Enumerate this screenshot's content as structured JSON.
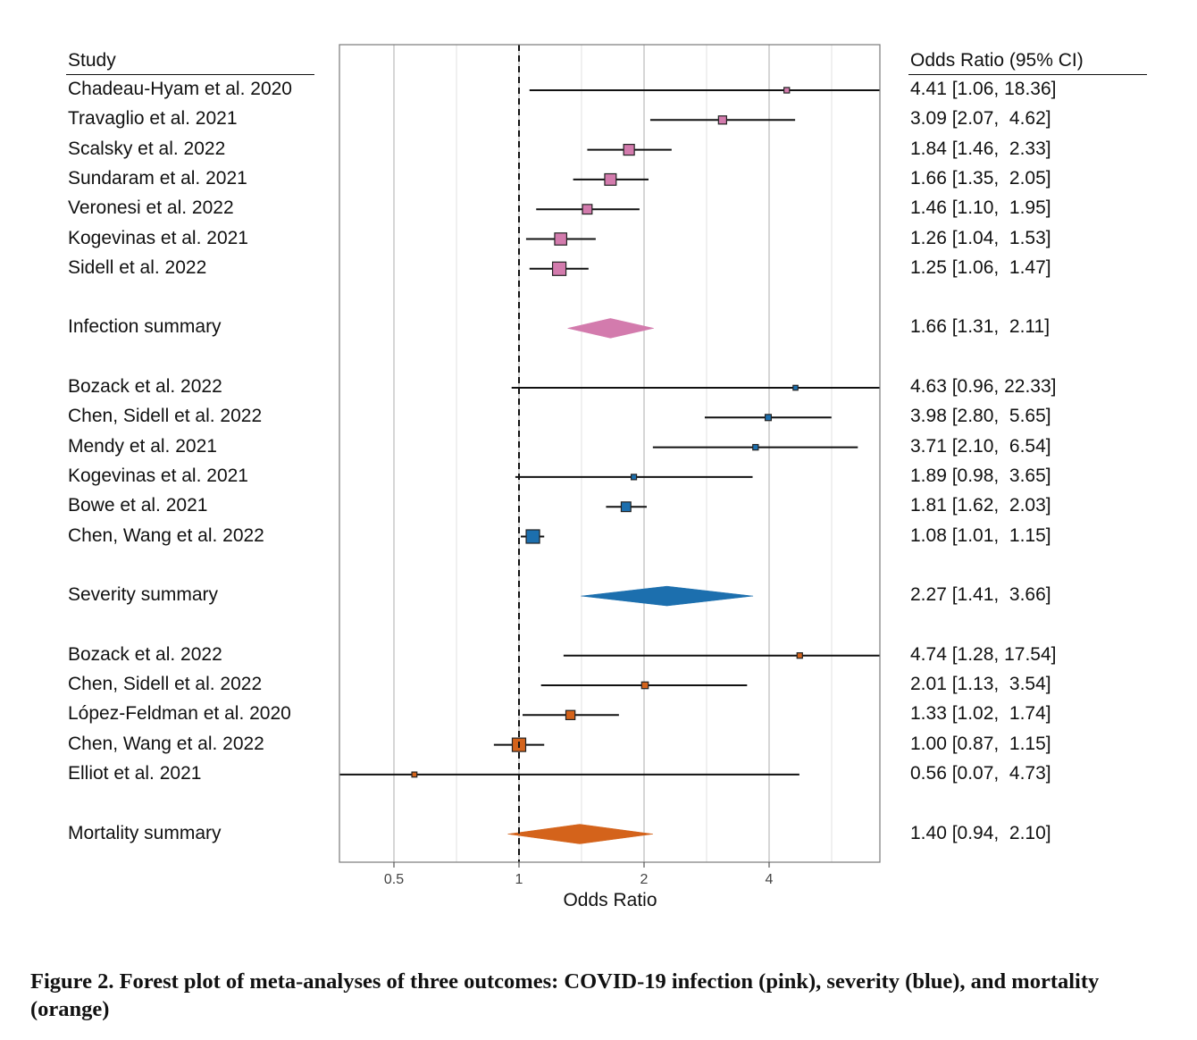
{
  "chart_data": {
    "type": "forest",
    "xscale": "log",
    "xlabel": "Odds Ratio",
    "xticks": [
      0.5,
      1,
      2,
      4
    ],
    "xlim": [
      0.36,
      6.1
    ],
    "reference_line": 1,
    "colors": {
      "infection": "#d37bad",
      "severity": "#1c6fae",
      "mortality": "#d4631b"
    },
    "headers": {
      "study": "Study",
      "odds_ratio": "Odds Ratio (95% CI)"
    },
    "groups": [
      {
        "outcome": "infection",
        "studies": [
          {
            "study": "Chadeau-Hyam et al. 2020",
            "or": 4.41,
            "lo": 1.06,
            "hi": 18.36,
            "label": "4.41 [1.06, 18.36]"
          },
          {
            "study": "Travaglio et al. 2021",
            "or": 3.09,
            "lo": 2.07,
            "hi": 4.62,
            "label": "3.09 [2.07,  4.62]"
          },
          {
            "study": "Scalsky et al. 2022",
            "or": 1.84,
            "lo": 1.46,
            "hi": 2.33,
            "label": "1.84 [1.46,  2.33]"
          },
          {
            "study": "Sundaram et al. 2021",
            "or": 1.66,
            "lo": 1.35,
            "hi": 2.05,
            "label": "1.66 [1.35,  2.05]"
          },
          {
            "study": "Veronesi et al. 2022",
            "or": 1.46,
            "lo": 1.1,
            "hi": 1.95,
            "label": "1.46 [1.10,  1.95]"
          },
          {
            "study": "Kogevinas et al. 2021",
            "or": 1.26,
            "lo": 1.04,
            "hi": 1.53,
            "label": "1.26 [1.04,  1.53]"
          },
          {
            "study": "Sidell et al. 2022",
            "or": 1.25,
            "lo": 1.06,
            "hi": 1.47,
            "label": "1.25 [1.06,  1.47]"
          }
        ],
        "summary": {
          "label_text": "Infection summary",
          "or": 1.66,
          "lo": 1.31,
          "hi": 2.11,
          "label": "1.66 [1.31,  2.11]"
        }
      },
      {
        "outcome": "severity",
        "studies": [
          {
            "study": "Bozack et al. 2022",
            "or": 4.63,
            "lo": 0.96,
            "hi": 22.33,
            "label": "4.63 [0.96, 22.33]"
          },
          {
            "study": "Chen, Sidell et al. 2022",
            "or": 3.98,
            "lo": 2.8,
            "hi": 5.65,
            "label": "3.98 [2.80,  5.65]"
          },
          {
            "study": "Mendy et al. 2021",
            "or": 3.71,
            "lo": 2.1,
            "hi": 6.54,
            "label": "3.71 [2.10,  6.54]"
          },
          {
            "study": "Kogevinas et al. 2021",
            "or": 1.89,
            "lo": 0.98,
            "hi": 3.65,
            "label": "1.89 [0.98,  3.65]"
          },
          {
            "study": "Bowe et al. 2021",
            "or": 1.81,
            "lo": 1.62,
            "hi": 2.03,
            "label": "1.81 [1.62,  2.03]"
          },
          {
            "study": "Chen, Wang et al. 2022",
            "or": 1.08,
            "lo": 1.01,
            "hi": 1.15,
            "label": "1.08 [1.01,  1.15]"
          }
        ],
        "summary": {
          "label_text": "Severity summary",
          "or": 2.27,
          "lo": 1.41,
          "hi": 3.66,
          "label": "2.27 [1.41,  3.66]"
        }
      },
      {
        "outcome": "mortality",
        "studies": [
          {
            "study": "Bozack et al. 2022",
            "or": 4.74,
            "lo": 1.28,
            "hi": 17.54,
            "label": "4.74 [1.28, 17.54]"
          },
          {
            "study": "Chen, Sidell et al. 2022",
            "or": 2.01,
            "lo": 1.13,
            "hi": 3.54,
            "label": "2.01 [1.13,  3.54]"
          },
          {
            "study": "López-Feldman et al. 2020",
            "or": 1.33,
            "lo": 1.02,
            "hi": 1.74,
            "label": "1.33 [1.02,  1.74]"
          },
          {
            "study": "Chen, Wang et al. 2022",
            "or": 1.0,
            "lo": 0.87,
            "hi": 1.15,
            "label": "1.00 [0.87,  1.15]"
          },
          {
            "study": "Elliot et al. 2021",
            "or": 0.56,
            "lo": 0.07,
            "hi": 4.73,
            "label": "0.56 [0.07,  4.73]"
          }
        ],
        "summary": {
          "label_text": "Mortality summary",
          "or": 1.4,
          "lo": 0.94,
          "hi": 2.1,
          "label": "1.40 [0.94,  2.10]"
        }
      }
    ]
  },
  "caption": "Figure 2. Forest plot of meta-analyses of three outcomes: COVID-19 infection (pink), severity (blue), and mortality (orange)"
}
